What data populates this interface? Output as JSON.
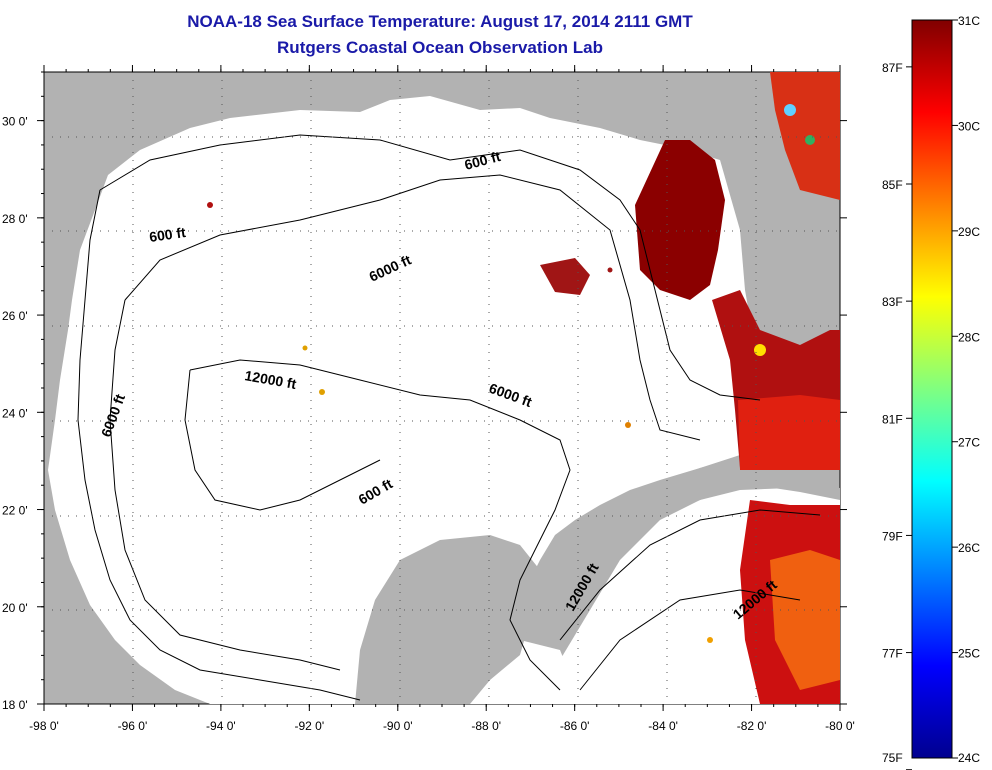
{
  "title": "NOAA-18 Sea Surface Temperature:  August 17, 2014 2111 GMT",
  "subtitle": "Rutgers Coastal Ocean Observation Lab",
  "map": {
    "lon_ticks": [
      "-98 0'",
      "-96 0'",
      "-94 0'",
      "-92 0'",
      "-90 0'",
      "-88 0'",
      "-86 0'",
      "-84 0'",
      "-82 0'",
      "-80 0'"
    ],
    "lat_ticks": [
      "18 0'",
      "20 0'",
      "22 0'",
      "24 0'",
      "26 0'",
      "28 0'",
      "30 0'"
    ],
    "lon_range": [
      -98,
      -80
    ],
    "lat_range": [
      18,
      31
    ],
    "land_color": "#b2b2b2",
    "ocean_nodata_color": "#ffffff",
    "contour_labels": [
      "600 ft",
      "600 ft",
      "600 ft",
      "6000 ft",
      "6000 ft",
      "6000 ft",
      "12000 ft",
      "12000 ft",
      "12000 ft"
    ]
  },
  "colorbar": {
    "celsius_ticks": [
      "31C",
      "30C",
      "29C",
      "28C",
      "27C",
      "26C",
      "25C",
      "24C"
    ],
    "fahrenheit_ticks": [
      "87F",
      "85F",
      "83F",
      "81F",
      "79F",
      "77F",
      "75F"
    ],
    "range_c": [
      24,
      31
    ],
    "colors": [
      "#00008f",
      "#0000ff",
      "#0080ff",
      "#00ffff",
      "#80ff80",
      "#ffff00",
      "#ff8000",
      "#ff0000",
      "#800000"
    ]
  }
}
